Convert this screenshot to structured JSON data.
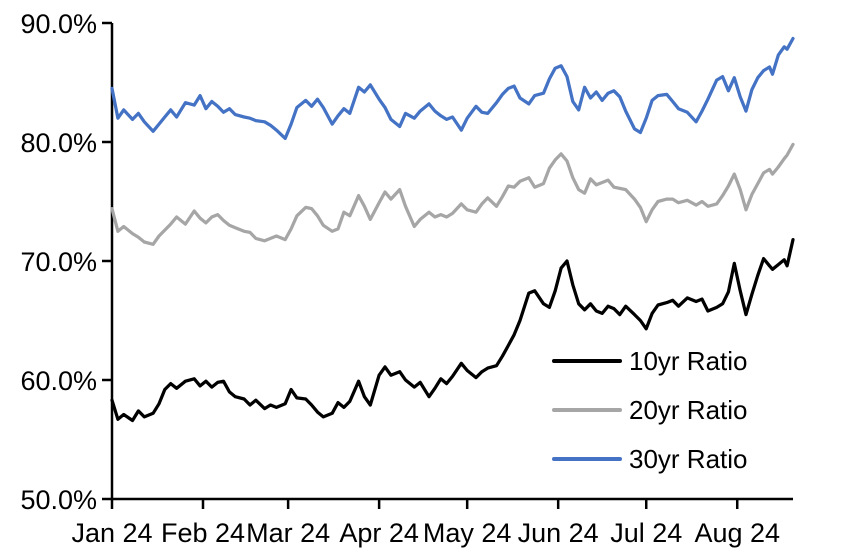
{
  "chart_data": {
    "type": "line",
    "title": "",
    "xlabel": "",
    "ylabel": "",
    "grid": false,
    "legend_position": "inside-lower-right",
    "background_color": "#FFFFFF",
    "axis_color": "#000000",
    "x_axis": {
      "unit": "days since Jan 1 2024",
      "min": 0,
      "max": 232,
      "tick_positions": [
        0,
        31,
        60,
        91,
        121,
        152,
        182,
        213
      ],
      "tick_labels": [
        "Jan 24",
        "Feb 24",
        "Mar 24",
        "Apr 24",
        "May 24",
        "Jun 24",
        "Jul 24",
        "Aug 24"
      ]
    },
    "y_axis": {
      "unit": "percent",
      "min": 50,
      "max": 90,
      "tick_values": [
        50,
        60,
        70,
        80,
        90
      ],
      "tick_labels": [
        "50.0%",
        "60.0%",
        "70.0%",
        "80.0%",
        "90.0%"
      ]
    },
    "x": [
      0,
      2,
      4,
      7,
      9,
      11,
      14,
      16,
      18,
      20,
      22,
      25,
      28,
      30,
      32,
      34,
      36,
      38,
      40,
      42,
      45,
      47,
      49,
      52,
      54,
      56,
      59,
      61,
      63,
      66,
      68,
      70,
      72,
      75,
      77,
      79,
      81,
      84,
      86,
      88,
      91,
      93,
      95,
      98,
      100,
      103,
      105,
      108,
      110,
      112,
      114,
      116,
      119,
      121,
      124,
      126,
      128,
      131,
      133,
      135,
      137,
      139,
      142,
      144,
      147,
      149,
      151,
      153,
      155,
      157,
      159,
      161,
      163,
      165,
      167,
      169,
      171,
      173,
      175,
      178,
      180,
      182,
      184,
      186,
      189,
      191,
      193,
      196,
      199,
      201,
      203,
      206,
      208,
      210,
      212,
      214,
      216,
      218,
      220,
      222,
      224,
      225,
      227,
      229,
      230,
      232
    ],
    "series": [
      {
        "name": "10yr Ratio",
        "color": "#000000",
        "values": [
          58.3,
          56.7,
          57.1,
          56.6,
          57.4,
          56.9,
          57.2,
          58.0,
          59.2,
          59.7,
          59.3,
          59.9,
          60.1,
          59.5,
          59.9,
          59.4,
          59.8,
          59.9,
          59.0,
          58.6,
          58.4,
          57.9,
          58.3,
          57.6,
          57.9,
          57.7,
          58.0,
          59.2,
          58.5,
          58.4,
          57.9,
          57.3,
          56.9,
          57.2,
          58.1,
          57.7,
          58.2,
          59.9,
          58.6,
          57.9,
          60.4,
          61.1,
          60.4,
          60.7,
          60.0,
          59.4,
          59.8,
          58.6,
          59.3,
          60.1,
          59.7,
          60.3,
          61.4,
          60.8,
          60.2,
          60.7,
          61.0,
          61.2,
          62.0,
          62.9,
          63.8,
          65.0,
          67.3,
          67.5,
          66.4,
          66.1,
          67.5,
          69.4,
          70.0,
          68.0,
          66.4,
          65.9,
          66.4,
          65.8,
          65.6,
          66.2,
          66.0,
          65.5,
          66.2,
          65.5,
          65.0,
          64.3,
          65.6,
          66.3,
          66.5,
          66.7,
          66.2,
          66.9,
          66.6,
          66.8,
          65.8,
          66.1,
          66.4,
          67.4,
          69.8,
          67.5,
          65.5,
          67.2,
          68.8,
          70.2,
          69.6,
          69.3,
          69.7,
          70.1,
          69.6,
          71.8
        ]
      },
      {
        "name": "20yr Ratio",
        "color": "#A6A6A6",
        "values": [
          74.4,
          72.5,
          72.9,
          72.3,
          72.0,
          71.6,
          71.4,
          72.1,
          72.6,
          73.1,
          73.7,
          73.1,
          74.2,
          73.6,
          73.2,
          73.7,
          73.9,
          73.4,
          73.0,
          72.8,
          72.5,
          72.4,
          71.9,
          71.7,
          71.9,
          72.1,
          71.8,
          72.7,
          73.8,
          74.5,
          74.4,
          73.8,
          73.0,
          72.5,
          72.7,
          74.1,
          73.8,
          75.5,
          74.6,
          73.5,
          74.9,
          75.8,
          75.2,
          76.0,
          74.6,
          72.9,
          73.5,
          74.1,
          73.7,
          73.9,
          73.7,
          74.0,
          74.8,
          74.3,
          74.1,
          74.8,
          75.3,
          74.6,
          75.4,
          76.3,
          76.2,
          76.7,
          77.0,
          76.2,
          76.5,
          77.8,
          78.5,
          79.0,
          78.4,
          77.0,
          76.0,
          75.7,
          76.9,
          76.4,
          76.6,
          76.8,
          76.2,
          76.1,
          76.0,
          75.2,
          74.5,
          73.3,
          74.3,
          75.0,
          75.2,
          75.2,
          74.9,
          75.1,
          74.7,
          75.0,
          74.6,
          74.8,
          75.5,
          76.3,
          77.3,
          76.0,
          74.3,
          75.6,
          76.5,
          77.4,
          77.7,
          77.3,
          77.9,
          78.6,
          78.9,
          79.8
        ]
      },
      {
        "name": "30yr Ratio",
        "color": "#4472C4",
        "values": [
          84.5,
          82.0,
          82.7,
          81.9,
          82.4,
          81.7,
          80.9,
          81.5,
          82.1,
          82.7,
          82.1,
          83.3,
          83.1,
          83.9,
          82.8,
          83.4,
          83.0,
          82.5,
          82.8,
          82.3,
          82.1,
          82.0,
          81.8,
          81.7,
          81.4,
          81.0,
          80.3,
          81.5,
          82.9,
          83.5,
          83.0,
          83.6,
          82.9,
          81.5,
          82.2,
          82.8,
          82.4,
          84.6,
          84.2,
          84.8,
          83.6,
          82.9,
          81.9,
          81.3,
          82.4,
          82.0,
          82.6,
          83.2,
          82.6,
          82.2,
          81.9,
          82.1,
          81.0,
          82.0,
          83.0,
          82.5,
          82.4,
          83.3,
          84.0,
          84.5,
          84.7,
          83.7,
          83.2,
          83.9,
          84.1,
          85.3,
          86.2,
          86.4,
          85.5,
          83.4,
          82.7,
          84.6,
          83.7,
          84.2,
          83.5,
          84.1,
          84.3,
          83.8,
          82.6,
          81.1,
          80.8,
          82.0,
          83.5,
          83.9,
          84.0,
          83.4,
          82.8,
          82.5,
          81.7,
          82.6,
          83.6,
          85.2,
          85.5,
          84.3,
          85.4,
          83.8,
          82.6,
          84.4,
          85.4,
          86.0,
          86.3,
          85.7,
          87.3,
          88.0,
          87.8,
          88.7
        ]
      }
    ]
  }
}
